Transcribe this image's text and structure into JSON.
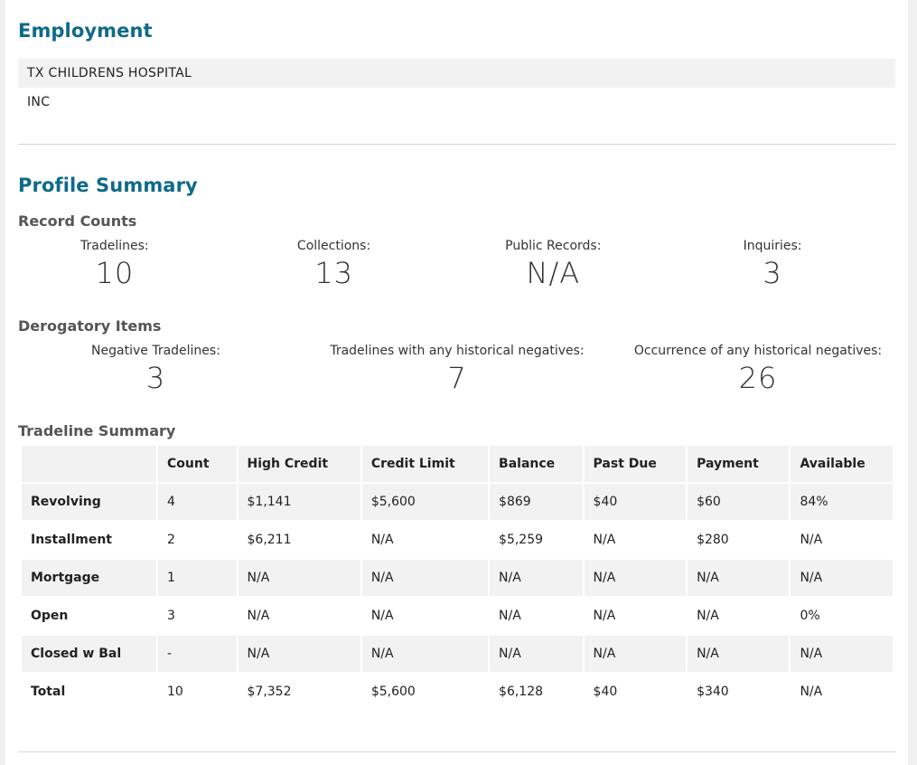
{
  "employment": {
    "title": "Employment",
    "lines": [
      "TX CHILDRENS HOSPITAL",
      "INC"
    ]
  },
  "profile": {
    "title": "Profile Summary",
    "record_counts": {
      "title": "Record Counts",
      "items": [
        {
          "label": "Tradelines:",
          "value": "10"
        },
        {
          "label": "Collections:",
          "value": "13"
        },
        {
          "label": "Public Records:",
          "value": "N/A"
        },
        {
          "label": "Inquiries:",
          "value": "3"
        }
      ]
    },
    "derogatory": {
      "title": "Derogatory Items",
      "items": [
        {
          "label": "Negative Tradelines:",
          "value": "3"
        },
        {
          "label": "Tradelines with any historical negatives:",
          "value": "7"
        },
        {
          "label": "Occurrence of any historical negatives:",
          "value": "26"
        }
      ]
    },
    "tradeline_summary": {
      "title": "Tradeline Summary",
      "headers": [
        "",
        "Count",
        "High Credit",
        "Credit Limit",
        "Balance",
        "Past Due",
        "Payment",
        "Available"
      ],
      "rows": [
        [
          "Revolving",
          "4",
          "$1,141",
          "$5,600",
          "$869",
          "$40",
          "$60",
          "84%"
        ],
        [
          "Installment",
          "2",
          "$6,211",
          "N/A",
          "$5,259",
          "N/A",
          "$280",
          "N/A"
        ],
        [
          "Mortgage",
          "1",
          "N/A",
          "N/A",
          "N/A",
          "N/A",
          "N/A",
          "N/A"
        ],
        [
          "Open",
          "3",
          "N/A",
          "N/A",
          "N/A",
          "N/A",
          "N/A",
          "0%"
        ],
        [
          "Closed w Bal",
          "-",
          "N/A",
          "N/A",
          "N/A",
          "N/A",
          "N/A",
          "N/A"
        ],
        [
          "Total",
          "10",
          "$7,352",
          "$5,600",
          "$6,128",
          "$40",
          "$340",
          "N/A"
        ]
      ]
    }
  }
}
